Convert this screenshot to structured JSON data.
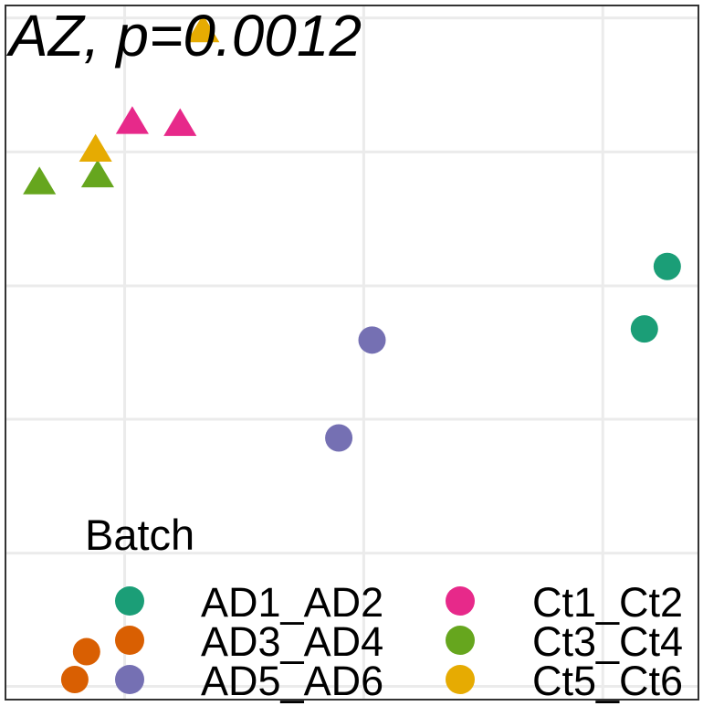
{
  "chart_data": {
    "type": "scatter",
    "title": "AZ, p=0.0012",
    "xlabel": "",
    "ylabel": "",
    "grid": true,
    "xlim": [
      0,
      1
    ],
    "ylim": [
      0,
      1
    ],
    "legend": {
      "title": "Batch",
      "placement": "bottom-inside"
    },
    "series": [
      {
        "name": "AD1_AD2",
        "color": "#1B9E77",
        "shape": "circle",
        "points": [
          [
            0.955,
            0.624
          ],
          [
            0.922,
            0.534
          ]
        ]
      },
      {
        "name": "AD3_AD4",
        "color": "#D95F02",
        "shape": "circle",
        "points": [
          [
            0.117,
            0.069
          ],
          [
            0.1,
            0.029
          ]
        ]
      },
      {
        "name": "AD5_AD6",
        "color": "#7570B3",
        "shape": "circle",
        "points": [
          [
            0.529,
            0.518
          ],
          [
            0.481,
            0.377
          ]
        ]
      },
      {
        "name": "Ct1_Ct2",
        "color": "#E7298A",
        "shape": "triangle",
        "points": [
          [
            0.183,
            0.83
          ],
          [
            0.252,
            0.827
          ]
        ]
      },
      {
        "name": "Ct3_Ct4",
        "color": "#66A61E",
        "shape": "triangle",
        "points": [
          [
            0.049,
            0.743
          ],
          [
            0.133,
            0.753
          ]
        ]
      },
      {
        "name": "Ct5_Ct6",
        "color": "#E6AB02",
        "shape": "triangle",
        "points": [
          [
            0.285,
            0.962
          ],
          [
            0.13,
            0.79
          ]
        ]
      }
    ]
  }
}
